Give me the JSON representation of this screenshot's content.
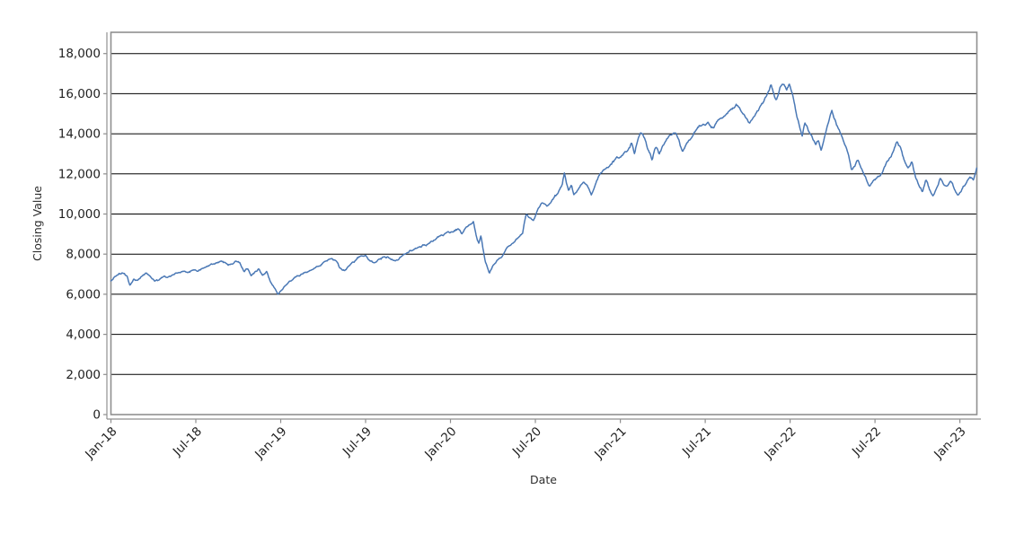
{
  "chart_data": {
    "type": "line",
    "title": "",
    "xlabel": "Date",
    "ylabel": "Closing Value",
    "series_color": "#4a78b5",
    "gridline_color": "#000000",
    "axis_color": "#8f8f8f",
    "ylim": [
      0,
      19060
    ],
    "y_ticks": [
      0,
      2000,
      4000,
      6000,
      8000,
      10000,
      12000,
      14000,
      16000,
      18000
    ],
    "x_tick_labels": [
      "Jan-18",
      "Jul-18",
      "Jan-19",
      "Jul-19",
      "Jan-20",
      "Jul-20",
      "Jan-21",
      "Jul-21",
      "Jan-22",
      "Jul-22",
      "Jan-23"
    ],
    "x_tick_positions_months": [
      0,
      6,
      12,
      18,
      24,
      30,
      36,
      42,
      48,
      54,
      60
    ],
    "x_span_months": 61.2,
    "series": [
      {
        "name": "Closing Value",
        "anchors_t_months_value": [
          [
            0,
            6680
          ],
          [
            0.4,
            6920
          ],
          [
            0.8,
            7060
          ],
          [
            1.15,
            6880
          ],
          [
            1.35,
            6420
          ],
          [
            1.6,
            6760
          ],
          [
            1.9,
            6700
          ],
          [
            2.2,
            6920
          ],
          [
            2.5,
            7080
          ],
          [
            2.8,
            6870
          ],
          [
            3.1,
            6640
          ],
          [
            3.4,
            6700
          ],
          [
            3.7,
            6870
          ],
          [
            4.0,
            6820
          ],
          [
            4.3,
            6960
          ],
          [
            4.7,
            7080
          ],
          [
            5.1,
            7130
          ],
          [
            5.4,
            7060
          ],
          [
            5.75,
            7190
          ],
          [
            6.1,
            7120
          ],
          [
            6.5,
            7310
          ],
          [
            6.9,
            7400
          ],
          [
            7.3,
            7500
          ],
          [
            7.75,
            7640
          ],
          [
            8.1,
            7560
          ],
          [
            8.45,
            7480
          ],
          [
            8.8,
            7650
          ],
          [
            9.1,
            7560
          ],
          [
            9.4,
            7120
          ],
          [
            9.65,
            7280
          ],
          [
            9.9,
            6940
          ],
          [
            10.2,
            7120
          ],
          [
            10.45,
            7260
          ],
          [
            10.7,
            6960
          ],
          [
            11.0,
            7120
          ],
          [
            11.3,
            6570
          ],
          [
            11.55,
            6300
          ],
          [
            11.8,
            5980
          ],
          [
            12.1,
            6220
          ],
          [
            12.4,
            6460
          ],
          [
            12.75,
            6680
          ],
          [
            13.1,
            6870
          ],
          [
            13.5,
            7010
          ],
          [
            13.9,
            7110
          ],
          [
            14.3,
            7250
          ],
          [
            14.7,
            7420
          ],
          [
            15.1,
            7600
          ],
          [
            15.5,
            7780
          ],
          [
            15.9,
            7660
          ],
          [
            16.2,
            7280
          ],
          [
            16.5,
            7160
          ],
          [
            16.9,
            7440
          ],
          [
            17.3,
            7680
          ],
          [
            17.6,
            7880
          ],
          [
            18.0,
            7960
          ],
          [
            18.3,
            7690
          ],
          [
            18.6,
            7580
          ],
          [
            18.9,
            7760
          ],
          [
            19.3,
            7890
          ],
          [
            19.7,
            7780
          ],
          [
            20.1,
            7670
          ],
          [
            20.5,
            7880
          ],
          [
            20.9,
            8060
          ],
          [
            21.3,
            8190
          ],
          [
            21.7,
            8340
          ],
          [
            22.1,
            8460
          ],
          [
            22.5,
            8570
          ],
          [
            22.9,
            8720
          ],
          [
            23.3,
            8890
          ],
          [
            23.7,
            9050
          ],
          [
            24.1,
            9110
          ],
          [
            24.55,
            9250
          ],
          [
            24.8,
            9010
          ],
          [
            25.1,
            9320
          ],
          [
            25.4,
            9520
          ],
          [
            25.62,
            9620
          ],
          [
            25.85,
            8850
          ],
          [
            26.0,
            8560
          ],
          [
            26.15,
            8920
          ],
          [
            26.45,
            7620
          ],
          [
            26.75,
            7000
          ],
          [
            27.0,
            7420
          ],
          [
            27.3,
            7720
          ],
          [
            27.6,
            7850
          ],
          [
            28.0,
            8330
          ],
          [
            28.4,
            8560
          ],
          [
            28.8,
            8830
          ],
          [
            29.1,
            9030
          ],
          [
            29.35,
            10020
          ],
          [
            29.6,
            9800
          ],
          [
            29.85,
            9680
          ],
          [
            30.2,
            10250
          ],
          [
            30.5,
            10550
          ],
          [
            30.8,
            10360
          ],
          [
            31.2,
            10700
          ],
          [
            31.6,
            11050
          ],
          [
            31.9,
            11450
          ],
          [
            32.05,
            12050
          ],
          [
            32.2,
            11500
          ],
          [
            32.35,
            11170
          ],
          [
            32.55,
            11480
          ],
          [
            32.7,
            10960
          ],
          [
            33.0,
            11180
          ],
          [
            33.4,
            11620
          ],
          [
            33.7,
            11350
          ],
          [
            33.95,
            10940
          ],
          [
            34.2,
            11370
          ],
          [
            34.5,
            11890
          ],
          [
            34.85,
            12190
          ],
          [
            35.2,
            12380
          ],
          [
            35.6,
            12690
          ],
          [
            36.0,
            12870
          ],
          [
            36.3,
            13080
          ],
          [
            36.55,
            13220
          ],
          [
            36.8,
            13560
          ],
          [
            37.0,
            13020
          ],
          [
            37.2,
            13590
          ],
          [
            37.45,
            14090
          ],
          [
            37.7,
            13830
          ],
          [
            37.95,
            13210
          ],
          [
            38.25,
            12650
          ],
          [
            38.5,
            13320
          ],
          [
            38.75,
            12980
          ],
          [
            39.1,
            13480
          ],
          [
            39.5,
            13900
          ],
          [
            39.9,
            14050
          ],
          [
            40.15,
            13680
          ],
          [
            40.4,
            13060
          ],
          [
            40.7,
            13550
          ],
          [
            41.0,
            13760
          ],
          [
            41.4,
            14190
          ],
          [
            41.8,
            14480
          ],
          [
            42.2,
            14640
          ],
          [
            42.6,
            14280
          ],
          [
            42.95,
            14690
          ],
          [
            43.3,
            14860
          ],
          [
            43.7,
            15120
          ],
          [
            44.1,
            15310
          ],
          [
            44.3,
            15400
          ],
          [
            44.6,
            15090
          ],
          [
            44.9,
            14760
          ],
          [
            45.15,
            14560
          ],
          [
            45.5,
            14890
          ],
          [
            45.8,
            15230
          ],
          [
            46.1,
            15560
          ],
          [
            46.4,
            16010
          ],
          [
            46.65,
            16440
          ],
          [
            46.9,
            15820
          ],
          [
            47.05,
            15720
          ],
          [
            47.3,
            16320
          ],
          [
            47.55,
            16440
          ],
          [
            47.75,
            16180
          ],
          [
            47.95,
            16490
          ],
          [
            48.2,
            15890
          ],
          [
            48.45,
            14960
          ],
          [
            48.7,
            14240
          ],
          [
            48.85,
            13870
          ],
          [
            49.05,
            14520
          ],
          [
            49.3,
            14140
          ],
          [
            49.55,
            13870
          ],
          [
            49.8,
            13420
          ],
          [
            50.0,
            13650
          ],
          [
            50.2,
            13140
          ],
          [
            50.5,
            14010
          ],
          [
            50.75,
            14700
          ],
          [
            50.95,
            15210
          ],
          [
            51.2,
            14710
          ],
          [
            51.5,
            14150
          ],
          [
            51.8,
            13550
          ],
          [
            52.05,
            13110
          ],
          [
            52.35,
            12170
          ],
          [
            52.6,
            12390
          ],
          [
            52.8,
            12710
          ],
          [
            53.1,
            12230
          ],
          [
            53.35,
            11800
          ],
          [
            53.6,
            11360
          ],
          [
            53.85,
            11620
          ],
          [
            54.1,
            11780
          ],
          [
            54.4,
            11920
          ],
          [
            54.7,
            12380
          ],
          [
            55.0,
            12750
          ],
          [
            55.3,
            13110
          ],
          [
            55.55,
            13640
          ],
          [
            55.8,
            13340
          ],
          [
            56.1,
            12640
          ],
          [
            56.35,
            12340
          ],
          [
            56.6,
            12660
          ],
          [
            56.85,
            11890
          ],
          [
            57.1,
            11440
          ],
          [
            57.35,
            11060
          ],
          [
            57.6,
            11700
          ],
          [
            57.85,
            11210
          ],
          [
            58.1,
            10920
          ],
          [
            58.35,
            11260
          ],
          [
            58.6,
            11760
          ],
          [
            58.85,
            11480
          ],
          [
            59.1,
            11420
          ],
          [
            59.35,
            11680
          ],
          [
            59.6,
            11270
          ],
          [
            59.85,
            10930
          ],
          [
            60.1,
            11120
          ],
          [
            60.35,
            11420
          ],
          [
            60.7,
            11820
          ],
          [
            60.95,
            11680
          ],
          [
            61.2,
            12300
          ]
        ]
      }
    ],
    "legend": "none",
    "grid": "horizontal-only"
  }
}
